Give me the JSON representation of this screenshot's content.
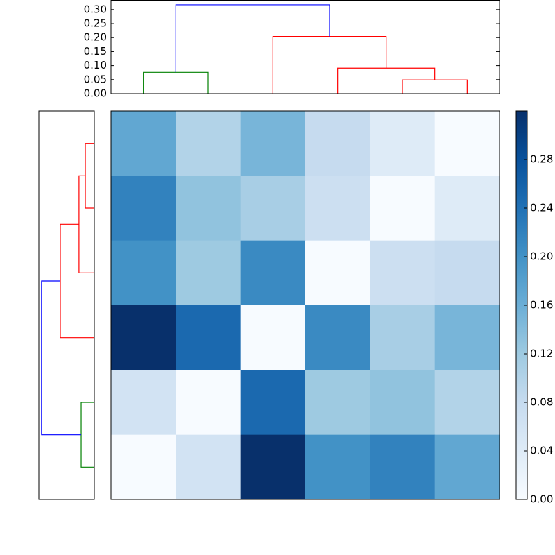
{
  "chart_data": [
    {
      "type": "dendrogram",
      "orientation": "top",
      "xlim": [
        0,
        6
      ],
      "ylim": [
        0,
        0.333
      ],
      "yticks": [
        {
          "value": 0,
          "label": "0.00"
        },
        0.05,
        {
          "value": 0.1,
          "label": "0.10"
        },
        0.15,
        {
          "value": 0.2,
          "label": "0.20"
        },
        0.25,
        {
          "value": 0.3,
          "label": "0.30"
        }
      ],
      "links": [
        {
          "color": "#008000",
          "x": [
            0.5,
            0.5,
            1.5,
            1.5
          ],
          "y": [
            0,
            0.076,
            0.076,
            0
          ]
        },
        {
          "color": "#ff0000",
          "x": [
            4.5,
            4.5,
            5.5,
            5.5
          ],
          "y": [
            0,
            0.049,
            0.049,
            0
          ]
        },
        {
          "color": "#ff0000",
          "x": [
            3.5,
            3.5,
            5,
            5
          ],
          "y": [
            0,
            0.091,
            0.091,
            0.049
          ]
        },
        {
          "color": "#ff0000",
          "x": [
            2.5,
            2.5,
            4.25,
            4.25
          ],
          "y": [
            0,
            0.204,
            0.204,
            0.091
          ]
        },
        {
          "color": "#0000ff",
          "x": [
            1,
            1,
            3.375,
            3.375
          ],
          "y": [
            0.076,
            0.317,
            0.317,
            0.204
          ]
        }
      ]
    },
    {
      "type": "dendrogram",
      "orientation": "left",
      "xlim": [
        0.333,
        0
      ],
      "ylim": [
        0,
        6
      ],
      "links": [
        {
          "color": "#008000",
          "y": [
            0.5,
            0.5,
            1.5,
            1.5
          ],
          "x": [
            0,
            0.079,
            0.079,
            0
          ]
        },
        {
          "color": "#ff0000",
          "y": [
            4.5,
            4.5,
            5.5,
            5.5
          ],
          "x": [
            0,
            0.054,
            0.054,
            0
          ]
        },
        {
          "color": "#ff0000",
          "y": [
            3.5,
            3.5,
            5,
            5
          ],
          "x": [
            0,
            0.092,
            0.092,
            0.054
          ]
        },
        {
          "color": "#ff0000",
          "y": [
            2.5,
            2.5,
            4.25,
            4.25
          ],
          "x": [
            0,
            0.204,
            0.204,
            0.092
          ]
        },
        {
          "color": "#0000ff",
          "y": [
            1,
            1,
            3.375,
            3.375
          ],
          "x": [
            0.079,
            0.317,
            0.317,
            0.204
          ]
        }
      ]
    },
    {
      "type": "heatmap",
      "z": [
        [
          0.17,
          0.1,
          0.15,
          0.08,
          0.04,
          0.0
        ],
        [
          0.22,
          0.13,
          0.11,
          0.07,
          0.0,
          0.04
        ],
        [
          0.2,
          0.12,
          0.21,
          0.0,
          0.07,
          0.08
        ],
        [
          0.32,
          0.25,
          0.0,
          0.21,
          0.11,
          0.15
        ],
        [
          0.06,
          0.0,
          0.25,
          0.12,
          0.13,
          0.1
        ],
        [
          0.0,
          0.06,
          0.32,
          0.2,
          0.22,
          0.17
        ]
      ],
      "colormap": [
        "#f7fbff",
        "#deebf7",
        "#c6dbef",
        "#9ecae1",
        "#6baed6",
        "#4292c6",
        "#2171b5",
        "#08519c",
        "#08306b"
      ],
      "clim": [
        0,
        0.32
      ],
      "cticks": [
        {
          "value": 0,
          "label": "0.00"
        },
        0.04,
        0.08,
        0.12,
        0.16,
        {
          "value": 0.2,
          "label": "0.20"
        },
        0.24,
        0.28
      ]
    }
  ]
}
